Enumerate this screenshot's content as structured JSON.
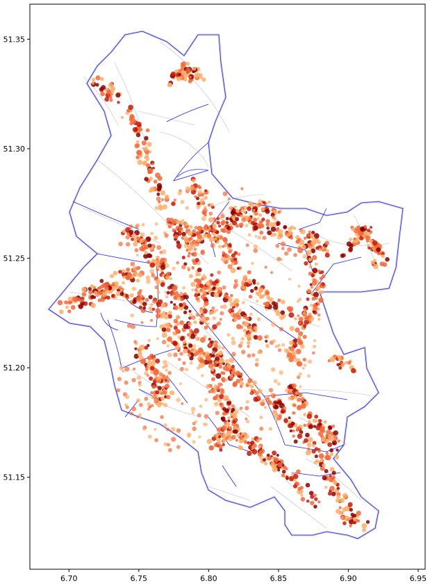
{
  "map": {
    "x_ticks": [
      "6.70",
      "6.75",
      "6.80",
      "6.85",
      "6.90",
      "6.95"
    ],
    "y_ticks": [
      "51.35",
      "51.30",
      "51.25",
      "51.20",
      "51.15"
    ],
    "xlim": [
      6.672,
      6.955
    ],
    "ylim": [
      51.108,
      51.366
    ],
    "colors": {
      "district_border": "#1a1aff",
      "street": "#c8c8c8",
      "point_light": "#fdae6b",
      "point_mid": "#f16a3c",
      "point_dark": "#c41a0c",
      "point_darkest": "#8b0000"
    }
  }
}
